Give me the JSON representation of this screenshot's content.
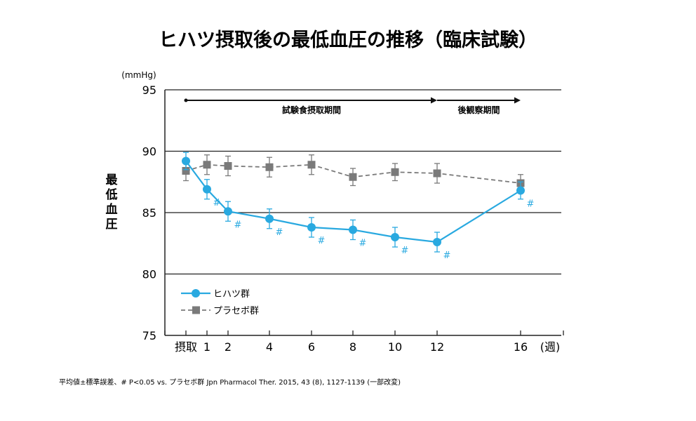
{
  "title": "ヒハツ摂取後の最低血圧の推移（臨床試験）",
  "footnote": "平均値±標準誤差、# P<0.05 vs. プラセボ群 Jpn Pharmacol Ther. 2015, 43 (8), 1127-1139 (一部改変)",
  "chart_data": {
    "type": "line",
    "ylabel": "最低血圧",
    "yunit": "(mmHg)",
    "ylim": [
      75,
      95
    ],
    "yticks": [
      75,
      80,
      85,
      90,
      95
    ],
    "xlabel": "(週)",
    "x": [
      0,
      1,
      2,
      4,
      6,
      8,
      10,
      12,
      16
    ],
    "xtick_labels": [
      "摂取",
      "1",
      "2",
      "4",
      "6",
      "8",
      "10",
      "12",
      "16"
    ],
    "periods": [
      {
        "label": "試験食摂取期間",
        "from": 0,
        "to": 12
      },
      {
        "label": "後観察期間",
        "from": 12,
        "to": 16
      }
    ],
    "series": [
      {
        "name": "ヒハツ群",
        "color": "#29a9e0",
        "marker": "circle",
        "linestyle": "solid",
        "values": [
          89.2,
          86.9,
          85.1,
          84.5,
          83.8,
          83.6,
          83.0,
          82.6,
          86.8
        ],
        "errors": [
          0.7,
          0.8,
          0.8,
          0.8,
          0.8,
          0.8,
          0.8,
          0.8,
          0.7
        ],
        "significant": [
          false,
          true,
          true,
          true,
          true,
          true,
          true,
          true,
          true
        ],
        "sig_mark": "#"
      },
      {
        "name": "プラセボ群",
        "color": "#7a7a7a",
        "marker": "square",
        "linestyle": "dashed",
        "values": [
          88.4,
          88.9,
          88.8,
          88.7,
          88.9,
          87.9,
          88.3,
          88.2,
          87.4
        ],
        "errors": [
          0.8,
          0.8,
          0.8,
          0.8,
          0.8,
          0.7,
          0.7,
          0.8,
          0.7
        ]
      }
    ],
    "grid": "horizontal",
    "legend_position": "lower-left"
  }
}
